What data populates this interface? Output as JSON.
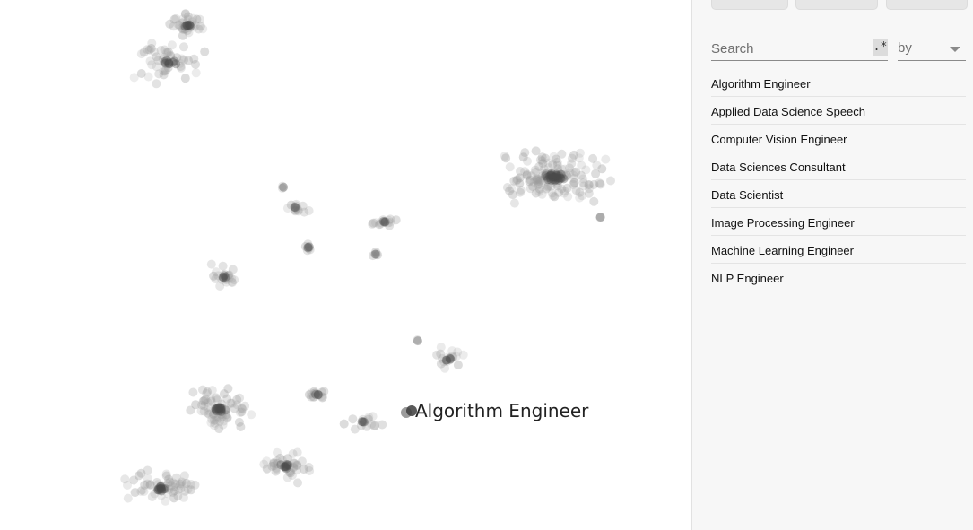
{
  "projector": {
    "hover_label": "Algorithm Engineer"
  },
  "panel": {
    "search_placeholder": "Search",
    "regex_label": ".*",
    "by_label": "by",
    "items": [
      "Algorithm Engineer",
      "Applied Data Science Speech",
      "Computer Vision Engineer",
      "Data Sciences Consultant",
      "Data Scientist",
      "Image Processing Engineer",
      "Machine Learning Engineer",
      "NLP Engineer"
    ]
  }
}
